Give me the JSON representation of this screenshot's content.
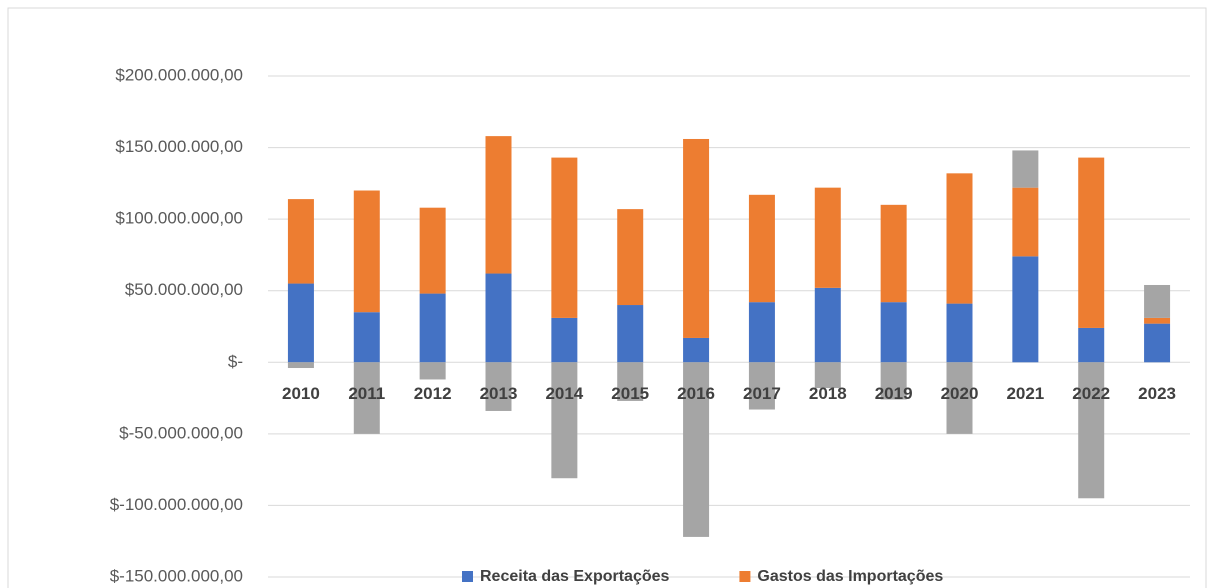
{
  "chart_data": {
    "type": "stacked_bar",
    "categories": [
      "2010",
      "2011",
      "2012",
      "2013",
      "2014",
      "2015",
      "2016",
      "2017",
      "2018",
      "2019",
      "2020",
      "2021",
      "2022",
      "2023"
    ],
    "series": [
      {
        "name": "Receita das Exportações",
        "color": "#4472c4",
        "values": [
          55000000,
          35000000,
          48000000,
          62000000,
          31000000,
          40000000,
          17000000,
          42000000,
          52000000,
          42000000,
          41000000,
          74000000,
          24000000,
          27000000
        ]
      },
      {
        "name": "Gastos das Importações",
        "color": "#ed7d31",
        "values": [
          59000000,
          85000000,
          60000000,
          96000000,
          112000000,
          67000000,
          139000000,
          75000000,
          70000000,
          68000000,
          91000000,
          48000000,
          119000000,
          4000000
        ]
      },
      {
        "color": "#a5a5a5",
        "values": [
          -4000000,
          -50000000,
          -12000000,
          -34000000,
          -81000000,
          -27000000,
          -122000000,
          -33000000,
          -18000000,
          -26000000,
          -50000000,
          26000000,
          -95000000,
          23000000
        ]
      }
    ],
    "ylim": [
      -150000000,
      200000000
    ],
    "yticks": [
      {
        "value": -150000000,
        "label": "$-150.000.000,00"
      },
      {
        "value": -100000000,
        "label": "$-100.000.000,00"
      },
      {
        "value": -50000000,
        "label": "$-50.000.000,00"
      },
      {
        "value": 0,
        "label": "$-"
      },
      {
        "value": 50000000,
        "label": "$50.000.000,00"
      },
      {
        "value": 100000000,
        "label": "$100.000.000,00"
      },
      {
        "value": 150000000,
        "label": "$150.000.000,00"
      },
      {
        "value": 200000000,
        "label": "$200.000.000,00"
      }
    ],
    "grid": true,
    "legend": "bottom"
  }
}
